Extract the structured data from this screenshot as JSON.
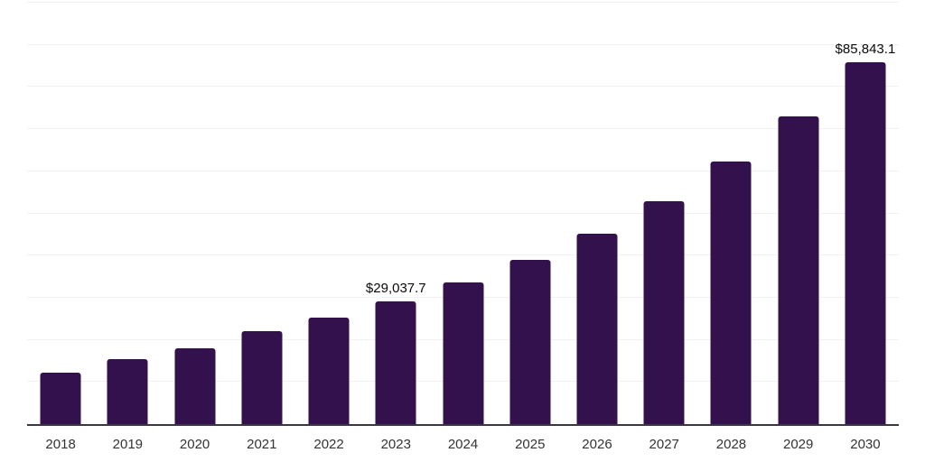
{
  "chart_data": {
    "type": "bar",
    "title": "",
    "xlabel": "",
    "ylabel": "",
    "categories": [
      "2018",
      "2019",
      "2020",
      "2021",
      "2022",
      "2023",
      "2024",
      "2025",
      "2026",
      "2027",
      "2028",
      "2029",
      "2030"
    ],
    "values": [
      12200,
      15400,
      18000,
      22100,
      25200,
      29037.7,
      33700,
      38900,
      45200,
      53000,
      62300,
      73100,
      85843.1
    ],
    "data_labels": [
      null,
      null,
      null,
      null,
      null,
      "$29,037.7",
      null,
      null,
      null,
      null,
      null,
      null,
      "$85,843.1"
    ],
    "ylim": [
      0,
      100000
    ],
    "gridline_step": 10000,
    "grid": "horizontal-only",
    "y_tick_labels_visible": false,
    "legend_position": "none",
    "colors": {
      "bar": "#33114d",
      "axis_line": "#3a3742",
      "gridline": "#f2f2f4",
      "data_label_text": "#0a0a0a",
      "x_tick_text": "#333333",
      "background": "#ffffff"
    }
  }
}
